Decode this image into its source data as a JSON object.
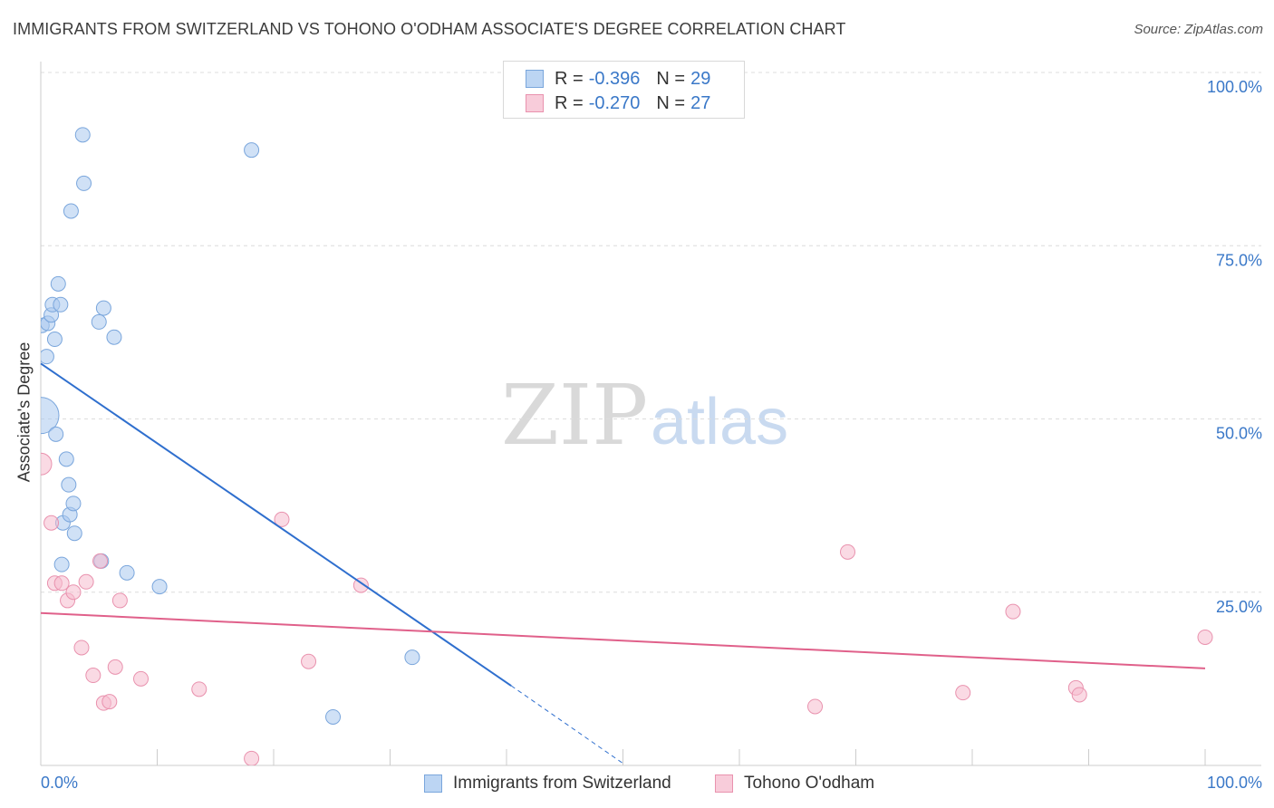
{
  "title": "IMMIGRANTS FROM SWITZERLAND VS TOHONO O'ODHAM ASSOCIATE'S DEGREE CORRELATION CHART",
  "source": "Source: ZipAtlas.com",
  "watermark": {
    "zip": "ZIP",
    "atlas": "atlas"
  },
  "legend": {
    "r_label": "R =",
    "n_label": "N =",
    "series": [
      {
        "r": "-0.396",
        "n": "29"
      },
      {
        "r": "-0.270",
        "n": "27"
      }
    ]
  },
  "colors": {
    "blue_fill": "#a9c8ef",
    "blue_stroke": "#7aa6dc",
    "blue_line": "#2f6fce",
    "pink_fill": "#f5bccd",
    "pink_stroke": "#e992ae",
    "pink_line": "#e0608a",
    "axis_text": "#3a78c8",
    "grid": "#dcdcdc"
  },
  "chart_data": {
    "type": "scatter",
    "title": "IMMIGRANTS FROM SWITZERLAND VS TOHONO O'ODHAM ASSOCIATE'S DEGREE CORRELATION CHART",
    "xlabel": "",
    "ylabel": "Associate's Degree",
    "xlim": [
      0,
      100
    ],
    "ylim": [
      0,
      100
    ],
    "x_tick_labels": [
      "0.0%",
      "100.0%"
    ],
    "y_tick_labels": [
      "100.0%",
      "75.0%",
      "50.0%",
      "25.0%"
    ],
    "y_ticks": [
      100,
      75,
      50,
      25
    ],
    "grid": true,
    "legend_position": "top-center",
    "series": [
      {
        "name": "Immigrants from Switzerland",
        "color": "blue",
        "r": -0.396,
        "n": 29,
        "points": [
          [
            0.0,
            50.5,
            20
          ],
          [
            0.1,
            63.5,
            8
          ],
          [
            0.5,
            59.0,
            8
          ],
          [
            0.6,
            63.8,
            8
          ],
          [
            0.9,
            65.0,
            8
          ],
          [
            1.0,
            66.5,
            8
          ],
          [
            1.2,
            61.5,
            8
          ],
          [
            1.3,
            47.8,
            8
          ],
          [
            1.5,
            69.5,
            8
          ],
          [
            1.7,
            66.5,
            8
          ],
          [
            1.8,
            29.0,
            8
          ],
          [
            1.9,
            35.0,
            8
          ],
          [
            2.2,
            44.2,
            8
          ],
          [
            2.4,
            40.5,
            8
          ],
          [
            2.5,
            36.2,
            8
          ],
          [
            2.6,
            80.0,
            8
          ],
          [
            2.8,
            37.8,
            8
          ],
          [
            2.9,
            33.5,
            8
          ],
          [
            3.6,
            91.0,
            8
          ],
          [
            3.7,
            84.0,
            8
          ],
          [
            5.0,
            64.0,
            8
          ],
          [
            5.2,
            29.5,
            8
          ],
          [
            5.4,
            66.0,
            8
          ],
          [
            6.3,
            61.8,
            8
          ],
          [
            7.4,
            27.8,
            8
          ],
          [
            10.2,
            25.8,
            8
          ],
          [
            18.1,
            88.8,
            8
          ],
          [
            25.1,
            7.0,
            8
          ],
          [
            31.9,
            15.6,
            8
          ]
        ],
        "trendline": {
          "x": [
            0.0,
            40.4
          ],
          "y": [
            58.0,
            11.5
          ]
        },
        "trendline_extension": {
          "x": [
            40.4,
            50.0
          ],
          "y": [
            11.5,
            0.3
          ]
        }
      },
      {
        "name": "Tohono O'odham",
        "color": "pink",
        "r": -0.27,
        "n": 27,
        "points": [
          [
            0.0,
            43.5,
            12
          ],
          [
            0.9,
            35.0,
            8
          ],
          [
            1.2,
            26.3,
            8
          ],
          [
            1.8,
            26.3,
            8
          ],
          [
            2.3,
            23.8,
            8
          ],
          [
            2.8,
            25.0,
            8
          ],
          [
            3.5,
            17.0,
            8
          ],
          [
            3.9,
            26.5,
            8
          ],
          [
            4.5,
            13.0,
            8
          ],
          [
            5.1,
            29.5,
            8
          ],
          [
            5.4,
            9.0,
            8
          ],
          [
            5.9,
            9.2,
            8
          ],
          [
            6.4,
            14.2,
            8
          ],
          [
            6.8,
            23.8,
            8
          ],
          [
            8.6,
            12.5,
            8
          ],
          [
            13.6,
            11.0,
            8
          ],
          [
            18.1,
            1.0,
            8
          ],
          [
            20.7,
            35.5,
            8
          ],
          [
            23.0,
            15.0,
            8
          ],
          [
            27.5,
            26.0,
            8
          ],
          [
            66.5,
            8.5,
            8
          ],
          [
            69.3,
            30.8,
            8
          ],
          [
            79.2,
            10.5,
            8
          ],
          [
            83.5,
            22.2,
            8
          ],
          [
            88.9,
            11.2,
            8
          ],
          [
            89.2,
            10.2,
            8
          ],
          [
            100.0,
            18.5,
            8
          ]
        ],
        "trendline": {
          "x": [
            0.0,
            100.0
          ],
          "y": [
            22.0,
            14.0
          ]
        }
      }
    ]
  }
}
